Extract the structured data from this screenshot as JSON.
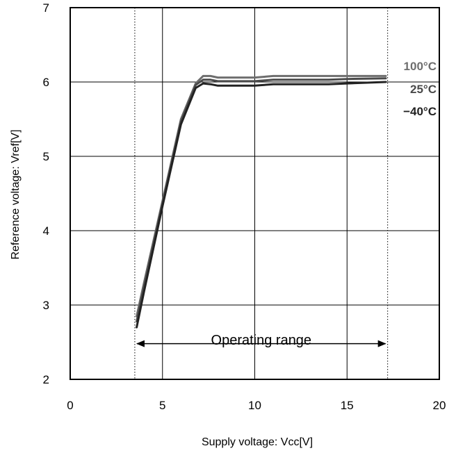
{
  "chart_data": {
    "type": "line",
    "xlabel": "Supply voltage: Vcc[V]",
    "ylabel": "Reference voltage: Vref[V]",
    "xlim": [
      0,
      20
    ],
    "ylim": [
      2,
      7
    ],
    "xticks": [
      0,
      5,
      10,
      15,
      20
    ],
    "yticks": [
      2,
      3,
      4,
      5,
      6,
      7
    ],
    "grid": true,
    "series": [
      {
        "name": "100°C",
        "color": "#6e6e6e",
        "x": [
          3.6,
          4,
          5,
          6,
          6.8,
          7.2,
          7.6,
          8,
          10,
          11,
          14,
          15,
          17.1
        ],
        "y": [
          2.85,
          3.3,
          4.4,
          5.5,
          5.98,
          6.08,
          6.08,
          6.06,
          6.06,
          6.08,
          6.08,
          6.08,
          6.08
        ]
      },
      {
        "name": "25°C",
        "color": "#4a4a4a",
        "x": [
          3.6,
          4,
          5,
          6,
          6.8,
          7.2,
          7.6,
          8,
          10,
          11,
          14,
          15,
          17.1
        ],
        "y": [
          2.78,
          3.25,
          4.37,
          5.47,
          5.96,
          6.03,
          6.03,
          6.01,
          6.01,
          6.03,
          6.03,
          6.04,
          6.05
        ]
      },
      {
        "name": "−40°C",
        "color": "#222222",
        "x": [
          3.6,
          4,
          5,
          6,
          6.8,
          7.2,
          7.6,
          8,
          10,
          11,
          14,
          15,
          17.1
        ],
        "y": [
          2.7,
          3.18,
          4.33,
          5.43,
          5.92,
          5.98,
          5.97,
          5.95,
          5.95,
          5.97,
          5.97,
          5.98,
          6.0
        ]
      }
    ],
    "markers": {
      "vertical_dotted_x": [
        3.5,
        17.2
      ]
    },
    "annotations": [
      {
        "text": "Operating range",
        "x_from": 3.5,
        "x_to": 17.2,
        "y": 2.48,
        "text_y": 2.6
      }
    ]
  }
}
